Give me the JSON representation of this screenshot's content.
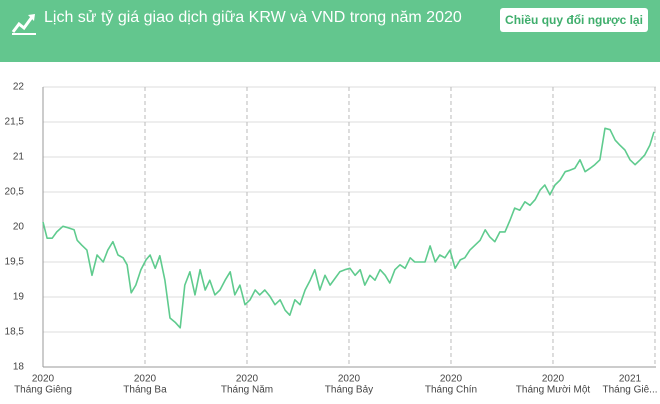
{
  "header": {
    "title": "Lịch sử tỷ giá giao dịch giữa KRW và VND trong năm 2020",
    "button": "Chiều quy đổi ngược lại"
  },
  "chart_data": {
    "type": "line",
    "color": "#5fcb8e",
    "grid": true,
    "xlim": [
      0,
      12.02
    ],
    "ylim": [
      18,
      22
    ],
    "yticks": [
      18,
      {
        "value": 18.5,
        "label": "18,5"
      },
      19,
      {
        "value": 19.5,
        "label": "19,5"
      },
      20,
      {
        "value": 20.5,
        "label": "20,5"
      },
      21,
      {
        "value": 21.5,
        "label": "21,5"
      },
      22
    ],
    "xticks": [
      {
        "value": 0,
        "year": "2020",
        "label": "Tháng Giêng"
      },
      {
        "value": 2,
        "year": "2020",
        "label": "Tháng Ba"
      },
      {
        "value": 4,
        "year": "2020",
        "label": "Tháng Năm"
      },
      {
        "value": 6,
        "year": "2020",
        "label": "Tháng Bảy"
      },
      {
        "value": 8,
        "year": "2020",
        "label": "Tháng Chín"
      },
      {
        "value": 10,
        "year": "2020",
        "label": "Tháng Mười Một"
      },
      {
        "value": 12,
        "year": "2021",
        "label": "Tháng Giê..."
      }
    ],
    "x": [
      0,
      0.08,
      0.18,
      0.27,
      0.39,
      0.49,
      0.61,
      0.67,
      0.76,
      0.86,
      0.96,
      1.06,
      1.18,
      1.27,
      1.37,
      1.47,
      1.57,
      1.65,
      1.73,
      1.82,
      1.92,
      2.02,
      2.1,
      2.2,
      2.29,
      2.39,
      2.49,
      2.59,
      2.69,
      2.78,
      2.88,
      2.98,
      3.08,
      3.18,
      3.27,
      3.37,
      3.47,
      3.57,
      3.67,
      3.76,
      3.86,
      3.96,
      4.06,
      4.16,
      4.25,
      4.35,
      4.45,
      4.55,
      4.65,
      4.75,
      4.84,
      4.94,
      5.04,
      5.14,
      5.24,
      5.33,
      5.43,
      5.53,
      5.63,
      5.73,
      5.82,
      5.92,
      6.02,
      6.12,
      6.22,
      6.31,
      6.41,
      6.51,
      6.61,
      6.71,
      6.8,
      6.9,
      7.0,
      7.1,
      7.2,
      7.29,
      7.39,
      7.49,
      7.59,
      7.69,
      7.78,
      7.88,
      7.98,
      8.08,
      8.18,
      8.27,
      8.37,
      8.47,
      8.57,
      8.67,
      8.76,
      8.86,
      8.96,
      9.06,
      9.16,
      9.25,
      9.35,
      9.45,
      9.55,
      9.65,
      9.75,
      9.84,
      9.94,
      10.04,
      10.14,
      10.24,
      10.33,
      10.43,
      10.53,
      10.63,
      10.73,
      10.82,
      10.92,
      11.02,
      11.12,
      11.22,
      11.31,
      11.41,
      11.51,
      11.61,
      11.71,
      11.8,
      11.9,
      11.98
    ],
    "values": [
      20.07,
      19.84,
      19.84,
      19.93,
      20.01,
      19.99,
      19.96,
      19.81,
      19.74,
      19.67,
      19.31,
      19.6,
      19.5,
      19.67,
      19.79,
      19.6,
      19.56,
      19.46,
      19.06,
      19.17,
      19.39,
      19.53,
      19.6,
      19.41,
      19.59,
      19.24,
      18.7,
      18.64,
      18.56,
      19.17,
      19.36,
      19.03,
      19.39,
      19.1,
      19.24,
      19.03,
      19.1,
      19.24,
      19.36,
      19.03,
      19.17,
      18.89,
      18.96,
      19.1,
      19.03,
      19.1,
      19.01,
      18.89,
      18.96,
      18.81,
      18.74,
      18.96,
      18.89,
      19.1,
      19.24,
      19.39,
      19.1,
      19.31,
      19.17,
      19.27,
      19.36,
      19.39,
      19.41,
      19.31,
      19.39,
      19.17,
      19.31,
      19.24,
      19.39,
      19.31,
      19.2,
      19.39,
      19.46,
      19.41,
      19.56,
      19.5,
      19.5,
      19.5,
      19.73,
      19.5,
      19.6,
      19.56,
      19.67,
      19.41,
      19.53,
      19.56,
      19.67,
      19.74,
      19.81,
      19.96,
      19.86,
      19.79,
      19.93,
      19.93,
      20.1,
      20.27,
      20.24,
      20.36,
      20.31,
      20.39,
      20.53,
      20.6,
      20.46,
      20.6,
      20.67,
      20.79,
      20.81,
      20.84,
      20.96,
      20.79,
      20.84,
      20.89,
      20.96,
      21.41,
      21.39,
      21.24,
      21.17,
      21.1,
      20.96,
      20.89,
      20.96,
      21.03,
      21.17,
      21.36
    ]
  }
}
